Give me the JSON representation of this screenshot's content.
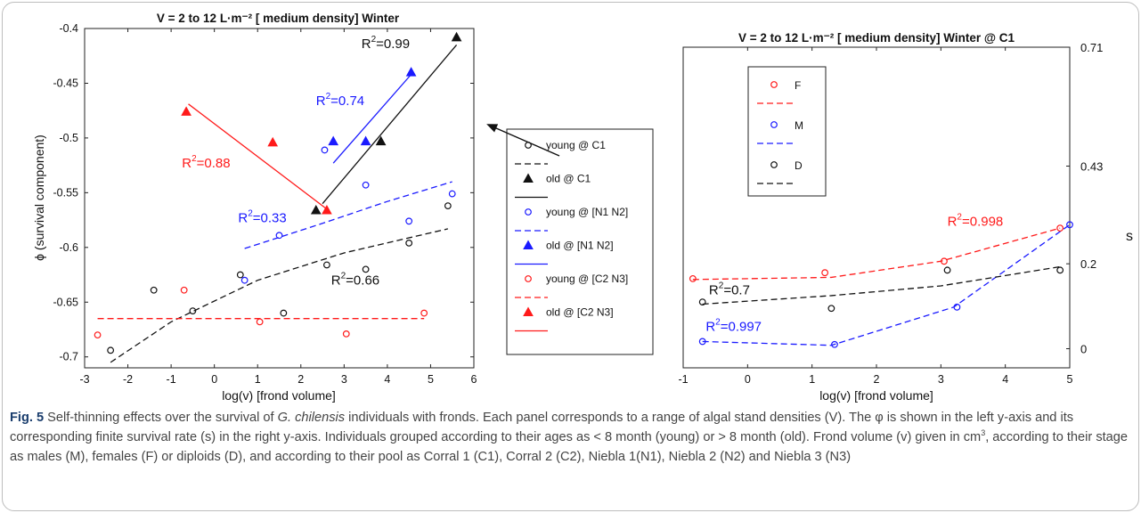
{
  "figure": {
    "caption": {
      "label": "Fig. 5",
      "text_before_species": " Self-thinning effects over the survival of ",
      "species": "G. chilensis",
      "text_before_sup": " individuals with fronds. Each panel corresponds to a range of algal stand densities (V). The φ is shown in the left y-axis and its corresponding finite survival rate (s) in the right y-axis. Individuals grouped according to their ages as < 8 month (young) or > 8 month (old). Frond volume (v) given in cm",
      "sup": "3",
      "text_after_sup": ", according to their stage as males (M), females (F) or diploids (D), and according to their pool as Corral 1 (C1), Corral 2 (C2), Niebla 1(N1), Niebla 2 (N2) and Niebla 3 (N3)"
    }
  },
  "colors": {
    "red": "#ff1a1a",
    "blue": "#1a1aff",
    "black": "#111111",
    "caption_label": "#1a3d6d"
  },
  "chart_data": [
    {
      "type": "scatter",
      "title": "V = 2 to 12 L·m⁻² [ medium density] Winter",
      "xlabel": "log(v) [frond volume]",
      "ylabel": "ϕ (survival component)",
      "xlim": [
        -3,
        6
      ],
      "ylim": [
        -0.71,
        -0.4
      ],
      "xticks": [
        -3,
        -2,
        -1,
        0,
        1,
        2,
        3,
        4,
        5,
        6
      ],
      "yticks": [
        -0.7,
        -0.65,
        -0.6,
        -0.55,
        -0.5,
        -0.45,
        -0.4
      ],
      "yticklabels": [
        "-0.7",
        "-0.65",
        "-0.6",
        "-0.55",
        "-0.5",
        "-0.45",
        "-0.4"
      ],
      "grid": false,
      "legend_position": "right, outside plot",
      "series": [
        {
          "name": "young @ C1",
          "color": "black",
          "marker": "circle",
          "line": "dashed",
          "points": [
            [
              -2.4,
              -0.694
            ],
            [
              -1.4,
              -0.639
            ],
            [
              -0.5,
              -0.658
            ],
            [
              0.6,
              -0.625
            ],
            [
              1.6,
              -0.66
            ],
            [
              2.6,
              -0.616
            ],
            [
              3.5,
              -0.62
            ],
            [
              4.5,
              -0.596
            ],
            [
              5.4,
              -0.562
            ]
          ],
          "fit": [
            [
              -2.4,
              -0.705
            ],
            [
              -1.0,
              -0.668
            ],
            [
              1.0,
              -0.63
            ],
            [
              3.0,
              -0.605
            ],
            [
              5.4,
              -0.583
            ]
          ]
        },
        {
          "name": "old @ C1",
          "color": "black",
          "marker": "triangle",
          "line": "solid",
          "points": [
            [
              2.35,
              -0.566
            ],
            [
              3.85,
              -0.503
            ],
            [
              5.6,
              -0.408
            ]
          ],
          "fit": [
            [
              2.5,
              -0.56
            ],
            [
              5.6,
              -0.415
            ]
          ]
        },
        {
          "name": "young @ [N1 N2]",
          "color": "blue",
          "marker": "circle",
          "line": "dashed",
          "points": [
            [
              0.7,
              -0.63
            ],
            [
              1.5,
              -0.589
            ],
            [
              2.55,
              -0.511
            ],
            [
              3.5,
              -0.543
            ],
            [
              4.5,
              -0.576
            ],
            [
              5.5,
              -0.551
            ]
          ],
          "fit": [
            [
              0.7,
              -0.601
            ],
            [
              2.5,
              -0.578
            ],
            [
              4.0,
              -0.558
            ],
            [
              5.5,
              -0.54
            ]
          ]
        },
        {
          "name": "old @ [N1 N2]",
          "color": "blue",
          "marker": "triangle",
          "line": "solid",
          "points": [
            [
              2.75,
              -0.503
            ],
            [
              3.5,
              -0.503
            ],
            [
              4.55,
              -0.44
            ]
          ],
          "fit": [
            [
              2.75,
              -0.523
            ],
            [
              4.55,
              -0.442
            ]
          ]
        },
        {
          "name": "young @ [C2 N3]",
          "color": "red",
          "marker": "circle",
          "line": "dashed",
          "points": [
            [
              -2.7,
              -0.68
            ],
            [
              -0.7,
              -0.639
            ],
            [
              1.05,
              -0.668
            ],
            [
              3.05,
              -0.679
            ],
            [
              4.85,
              -0.66
            ]
          ],
          "fit": [
            [
              -2.7,
              -0.665
            ],
            [
              4.85,
              -0.665
            ]
          ]
        },
        {
          "name": "old @ [C2 N3]",
          "color": "red",
          "marker": "triangle",
          "line": "solid",
          "points": [
            [
              -0.65,
              -0.476
            ],
            [
              1.35,
              -0.504
            ],
            [
              2.6,
              -0.566
            ]
          ],
          "fit": [
            [
              -0.6,
              -0.469
            ],
            [
              2.6,
              -0.565
            ]
          ]
        }
      ],
      "annotations": [
        {
          "base": "R",
          "sup": "2",
          "value": "=0.99",
          "color": "black",
          "x": 3.4,
          "y": -0.418
        },
        {
          "base": "R",
          "sup": "2",
          "value": "=0.74",
          "color": "blue",
          "x": 2.35,
          "y": -0.47
        },
        {
          "base": "R",
          "sup": "2",
          "value": "=0.88",
          "color": "red",
          "x": -0.75,
          "y": -0.527
        },
        {
          "base": "R",
          "sup": "2",
          "value": "=0.33",
          "color": "blue",
          "x": 0.55,
          "y": -0.577
        },
        {
          "base": "R",
          "sup": "2",
          "value": "=0.66",
          "color": "black",
          "x": 2.7,
          "y": -0.634
        }
      ]
    },
    {
      "type": "scatter",
      "title": "V = 2 to 12 L·m⁻² [ medium density] Winter @ C1",
      "xlabel": "log(v) [frond volume]",
      "ylabel_right": "s",
      "xlim": [
        -1,
        5
      ],
      "ylim": [
        -0.045,
        0.71
      ],
      "xticks": [
        -1,
        0,
        1,
        2,
        3,
        4,
        5
      ],
      "yticks": [
        0,
        0.2,
        0.43,
        0.71
      ],
      "yticklabels": [
        "0",
        "0.2",
        "0.43",
        "0.71"
      ],
      "y_axis_side": "right",
      "grid": false,
      "legend_position": "top-left, inside plot",
      "series": [
        {
          "name": "F",
          "color": "red",
          "marker": "circle",
          "line": "dashed",
          "points": [
            [
              -0.85,
              0.165
            ],
            [
              1.2,
              0.179
            ],
            [
              3.05,
              0.206
            ],
            [
              4.85,
              0.284
            ]
          ],
          "fit": [
            [
              -0.85,
              0.163
            ],
            [
              1.3,
              0.168
            ],
            [
              3.0,
              0.206
            ],
            [
              4.85,
              0.284
            ]
          ]
        },
        {
          "name": "M",
          "color": "blue",
          "marker": "circle",
          "line": "dashed",
          "points": [
            [
              -0.7,
              0.017
            ],
            [
              1.35,
              0.01
            ],
            [
              3.25,
              0.098
            ],
            [
              5.0,
              0.292
            ]
          ],
          "fit": [
            [
              -0.7,
              0.017
            ],
            [
              1.3,
              0.008
            ],
            [
              3.2,
              0.098
            ],
            [
              5.0,
              0.292
            ]
          ]
        },
        {
          "name": "D",
          "color": "black",
          "marker": "circle",
          "line": "dashed",
          "points": [
            [
              -0.7,
              0.11
            ],
            [
              1.3,
              0.095
            ],
            [
              3.1,
              0.185
            ],
            [
              4.85,
              0.185
            ]
          ],
          "fit": [
            [
              -0.7,
              0.105
            ],
            [
              1.3,
              0.125
            ],
            [
              3.0,
              0.148
            ],
            [
              4.85,
              0.193
            ]
          ]
        }
      ],
      "annotations": [
        {
          "base": "R",
          "sup": "2",
          "value": "=0.998",
          "color": "red",
          "x": 3.1,
          "y": 0.289
        },
        {
          "base": "R",
          "sup": "2",
          "value": "=0.7",
          "color": "black",
          "x": -0.6,
          "y": 0.128
        },
        {
          "base": "R",
          "sup": "2",
          "value": "=0.997",
          "color": "blue",
          "x": -0.65,
          "y": 0.042
        }
      ]
    }
  ]
}
